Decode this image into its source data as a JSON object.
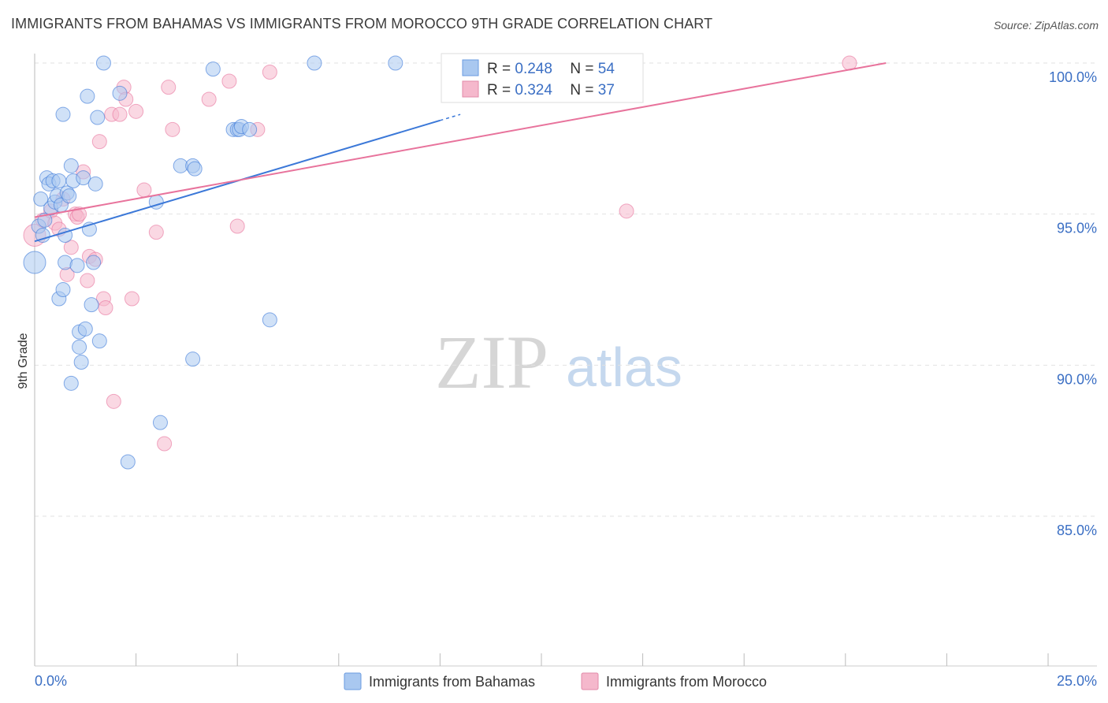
{
  "title": "IMMIGRANTS FROM BAHAMAS VS IMMIGRANTS FROM MOROCCO 9TH GRADE CORRELATION CHART",
  "source": "Source: ZipAtlas.com",
  "watermark": {
    "zip": "ZIP",
    "atlas": "atlas"
  },
  "colors": {
    "blue": "#3b78d8",
    "blue_fill": "#a9c8f0",
    "pink": "#e8739c",
    "pink_fill": "#f5b8cc",
    "tick_text": "#3b6fc4"
  },
  "legend": {
    "rows": [
      {
        "r_label": "R = ",
        "r_value": "0.248",
        "n_label": "N = ",
        "n_value": "54"
      },
      {
        "r_label": "R = ",
        "r_value": "0.324",
        "n_label": "N = ",
        "n_value": "37"
      }
    ]
  },
  "chart_data": {
    "type": "scatter",
    "title": "IMMIGRANTS FROM BAHAMAS VS IMMIGRANTS FROM MOROCCO 9TH GRADE CORRELATION CHART",
    "xlabel": "",
    "ylabel": "9th Grade",
    "xlim": [
      0,
      25
    ],
    "ylim": [
      80.5,
      100.5
    ],
    "x_tick_labels": [
      "0.0%",
      "25.0%"
    ],
    "y_ticks": [
      85,
      90,
      95,
      100
    ],
    "y_tick_labels": [
      "85.0%",
      "90.0%",
      "95.0%",
      "100.0%"
    ],
    "series": [
      {
        "name": "Immigrants from Bahamas",
        "color": "#3b78d8",
        "r": 0.248,
        "n": 54,
        "trend": {
          "x0": 0.0,
          "y0": 94.1,
          "x1": 10.0,
          "y1": 98.1,
          "dash_x1": 10.5,
          "dash_y1": 98.3
        },
        "points": [
          [
            0.0,
            93.4
          ],
          [
            0.1,
            94.6
          ],
          [
            0.15,
            95.5
          ],
          [
            0.2,
            94.3
          ],
          [
            0.25,
            94.8
          ],
          [
            0.3,
            96.2
          ],
          [
            0.35,
            96.0
          ],
          [
            0.4,
            95.2
          ],
          [
            0.45,
            96.1
          ],
          [
            0.5,
            95.4
          ],
          [
            0.55,
            95.6
          ],
          [
            0.6,
            96.1
          ],
          [
            0.6,
            92.2
          ],
          [
            0.65,
            95.3
          ],
          [
            0.7,
            92.5
          ],
          [
            0.75,
            93.4
          ],
          [
            0.75,
            94.3
          ],
          [
            0.8,
            95.7
          ],
          [
            0.85,
            95.6
          ],
          [
            0.9,
            89.4
          ],
          [
            0.9,
            96.6
          ],
          [
            0.95,
            96.1
          ],
          [
            1.05,
            93.3
          ],
          [
            1.1,
            91.1
          ],
          [
            1.1,
            90.6
          ],
          [
            1.15,
            90.1
          ],
          [
            1.2,
            96.2
          ],
          [
            1.25,
            91.2
          ],
          [
            1.3,
            98.9
          ],
          [
            1.35,
            94.5
          ],
          [
            1.4,
            92.0
          ],
          [
            1.45,
            93.4
          ],
          [
            1.5,
            96.0
          ],
          [
            1.55,
            98.2
          ],
          [
            1.6,
            90.8
          ],
          [
            1.7,
            100.0
          ],
          [
            2.1,
            99.0
          ],
          [
            2.3,
            86.8
          ],
          [
            3.0,
            95.4
          ],
          [
            3.1,
            88.1
          ],
          [
            3.6,
            96.6
          ],
          [
            3.9,
            96.6
          ],
          [
            3.9,
            90.2
          ],
          [
            3.95,
            96.5
          ],
          [
            4.4,
            99.8
          ],
          [
            4.9,
            97.8
          ],
          [
            5.0,
            97.8
          ],
          [
            5.05,
            97.8
          ],
          [
            5.1,
            97.9
          ],
          [
            5.3,
            97.8
          ],
          [
            5.8,
            91.5
          ],
          [
            6.9,
            100.0
          ],
          [
            8.9,
            100.0
          ],
          [
            0.7,
            98.3
          ]
        ]
      },
      {
        "name": "Immigrants from Morocco",
        "color": "#e8739c",
        "r": 0.324,
        "n": 37,
        "trend": {
          "x0": 0.0,
          "y0": 94.9,
          "x1": 21.0,
          "y1": 100.0
        },
        "points": [
          [
            0.0,
            94.3
          ],
          [
            0.2,
            94.8
          ],
          [
            0.4,
            95.1
          ],
          [
            0.5,
            94.7
          ],
          [
            0.6,
            94.5
          ],
          [
            0.7,
            95.5
          ],
          [
            0.8,
            93.0
          ],
          [
            0.9,
            93.9
          ],
          [
            1.0,
            95.0
          ],
          [
            1.05,
            94.9
          ],
          [
            1.1,
            95.0
          ],
          [
            1.2,
            96.4
          ],
          [
            1.3,
            92.8
          ],
          [
            1.35,
            93.6
          ],
          [
            1.5,
            93.5
          ],
          [
            1.6,
            97.4
          ],
          [
            1.7,
            92.2
          ],
          [
            1.75,
            91.9
          ],
          [
            1.9,
            98.3
          ],
          [
            1.95,
            88.8
          ],
          [
            2.1,
            98.3
          ],
          [
            2.2,
            99.2
          ],
          [
            2.25,
            98.8
          ],
          [
            2.4,
            92.2
          ],
          [
            2.5,
            98.4
          ],
          [
            2.7,
            95.8
          ],
          [
            3.0,
            94.4
          ],
          [
            3.2,
            87.4
          ],
          [
            3.3,
            99.2
          ],
          [
            3.4,
            97.8
          ],
          [
            4.3,
            98.8
          ],
          [
            4.8,
            99.4
          ],
          [
            5.0,
            94.6
          ],
          [
            5.5,
            97.8
          ],
          [
            5.8,
            99.7
          ],
          [
            14.6,
            95.1
          ],
          [
            20.1,
            100.0
          ]
        ]
      }
    ]
  }
}
